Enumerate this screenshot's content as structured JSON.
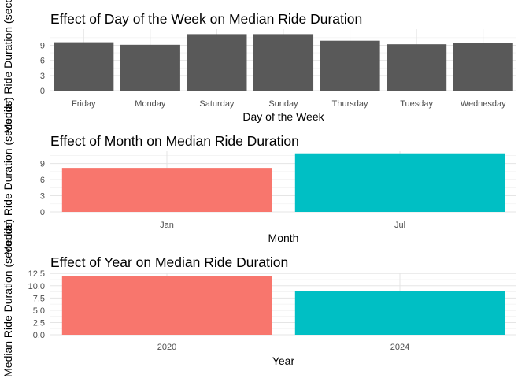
{
  "chart_data": [
    {
      "type": "bar",
      "title": "Effect of Day of the Week on Median Ride Duration",
      "xlabel": "Day of the Week",
      "ylabel": "Median Ride Duration (seconds)",
      "categories": [
        "Friday",
        "Monday",
        "Saturday",
        "Sunday",
        "Thursday",
        "Tuesday",
        "Wednesday"
      ],
      "values": [
        9.6,
        9.1,
        11.2,
        11.2,
        9.9,
        9.2,
        9.4
      ],
      "colors": [
        "#595959",
        "#595959",
        "#595959",
        "#595959",
        "#595959",
        "#595959",
        "#595959"
      ],
      "ylim": [
        0,
        12.2
      ],
      "yticks": [
        0,
        3,
        6,
        9
      ],
      "ytick_labels": [
        "0",
        "3",
        "6",
        "9"
      ],
      "grid": true,
      "legend": "none"
    },
    {
      "type": "bar",
      "title": "Effect of Month on Median Ride Duration",
      "xlabel": "Month",
      "ylabel": "Median Ride Duration (seconds)",
      "categories": [
        "Jan",
        "Jul"
      ],
      "values": [
        8.2,
        10.9
      ],
      "colors": [
        "#F8766D",
        "#00BFC4"
      ],
      "ylim": [
        0,
        11.3
      ],
      "yticks": [
        0,
        3,
        6,
        9
      ],
      "ytick_labels": [
        "0",
        "3",
        "6",
        "9"
      ],
      "grid": true,
      "legend": "none"
    },
    {
      "type": "bar",
      "title": "Effect of Year on Median Ride Duration",
      "xlabel": "Year",
      "ylabel": "Median Ride Duration (seconds)",
      "categories": [
        "2020",
        "2024"
      ],
      "values": [
        12.0,
        9.0
      ],
      "colors": [
        "#F8766D",
        "#00BFC4"
      ],
      "ylim": [
        0,
        12.7
      ],
      "yticks": [
        0,
        2.5,
        5,
        7.5,
        10,
        12.5
      ],
      "ytick_labels": [
        "0.0",
        "2.5",
        "5.0",
        "7.5",
        "10.0",
        "12.5"
      ],
      "grid": true,
      "legend": "none"
    }
  ]
}
